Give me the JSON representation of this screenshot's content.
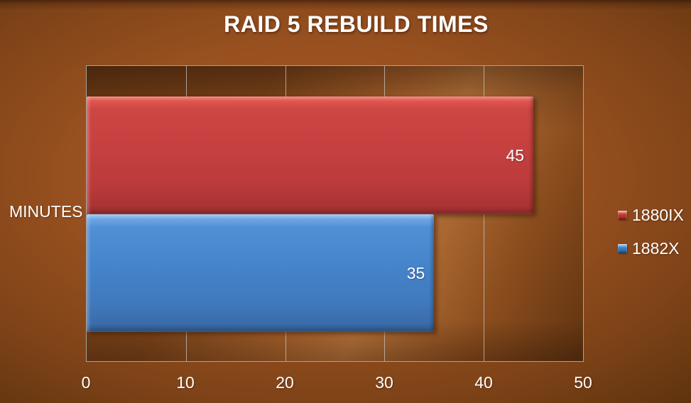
{
  "chart_data": {
    "type": "bar",
    "orientation": "horizontal",
    "title": "RAID 5 REBUILD TIMES",
    "category_axis_label": "MINUTES",
    "categories": [
      "1880IX",
      "1882X"
    ],
    "series": [
      {
        "name": "1880IX",
        "value": 45,
        "label": "45",
        "color": "#c64040"
      },
      {
        "name": "1882X",
        "value": 35,
        "label": "35",
        "color": "#4583ca"
      }
    ],
    "xlim": [
      0,
      50
    ],
    "x_ticks": [
      "0",
      "10",
      "20",
      "30",
      "40",
      "50"
    ],
    "gridlines": true,
    "legend_position": "right",
    "legend": [
      {
        "label": "1880IX",
        "color": "#c0392f"
      },
      {
        "label": "1882X",
        "color": "#3d7fc1"
      }
    ],
    "background_color": "#9a5120",
    "text_color": "#ffffff"
  }
}
